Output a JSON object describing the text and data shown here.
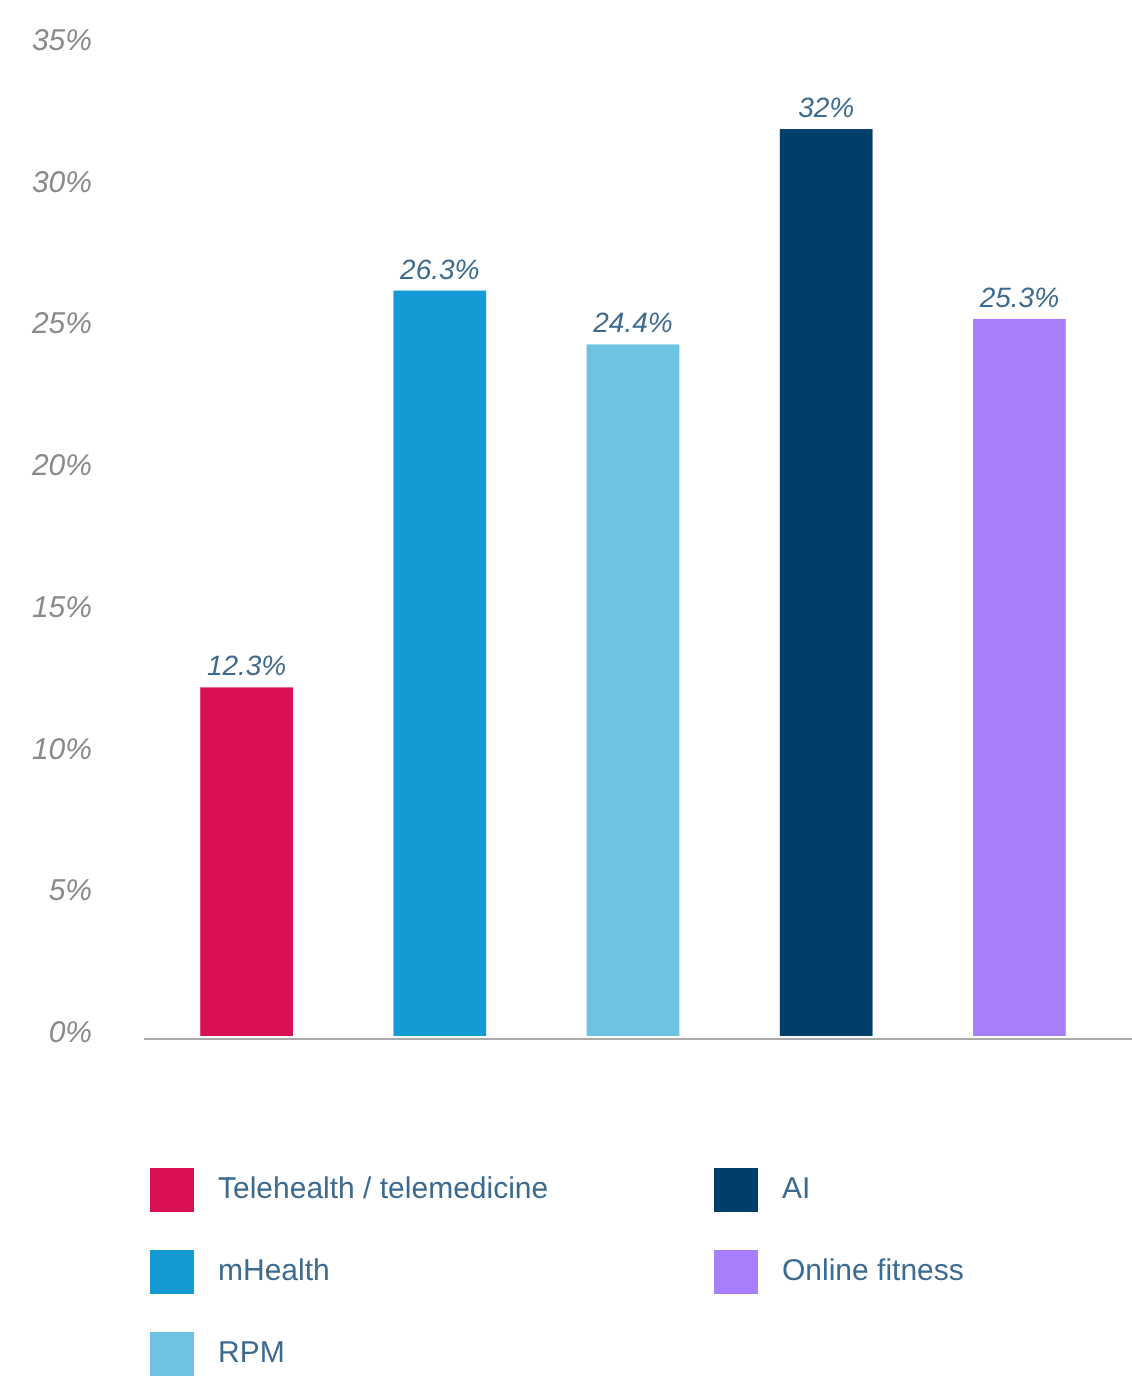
{
  "chart_data": {
    "type": "bar",
    "categories": [
      null,
      null,
      null,
      null,
      null
    ],
    "series": [
      {
        "name": "Telehealth / telemedicine",
        "color": "#da1056",
        "values": [
          12.3,
          null,
          null,
          null,
          null
        ],
        "value_labels": [
          "12.3%",
          null,
          null,
          null,
          null
        ]
      },
      {
        "name": "mHealth",
        "color": "#149bd6",
        "values": [
          null,
          26.3,
          null,
          null,
          null
        ],
        "value_labels": [
          null,
          "26.3%",
          null,
          null,
          null
        ]
      },
      {
        "name": "RPM",
        "color": "#6dc3e0",
        "values": [
          null,
          null,
          24.4,
          null,
          null
        ],
        "value_labels": [
          null,
          null,
          "24.4%",
          null,
          null
        ]
      },
      {
        "name": "AI",
        "color": "#013f6b",
        "values": [
          null,
          null,
          null,
          32,
          null
        ],
        "value_labels": [
          null,
          null,
          null,
          "32%",
          null
        ]
      },
      {
        "name": "Online fitness",
        "color": "#a77ffc",
        "values": [
          null,
          null,
          null,
          null,
          25.3
        ],
        "value_labels": [
          null,
          null,
          null,
          null,
          "25.3%"
        ]
      }
    ],
    "ylim": [
      0,
      35
    ],
    "yticks": [
      {
        "value": 0,
        "label": "0%"
      },
      {
        "value": 5,
        "label": "5%"
      },
      {
        "value": 10,
        "label": "10%"
      },
      {
        "value": 15,
        "label": "15%"
      },
      {
        "value": 20,
        "label": "20%"
      },
      {
        "value": 25,
        "label": "25%"
      },
      {
        "value": 30,
        "label": "30%"
      },
      {
        "value": 35,
        "label": "35%"
      }
    ],
    "stacked": true,
    "tick_labels": "y",
    "legend": "bottom"
  }
}
